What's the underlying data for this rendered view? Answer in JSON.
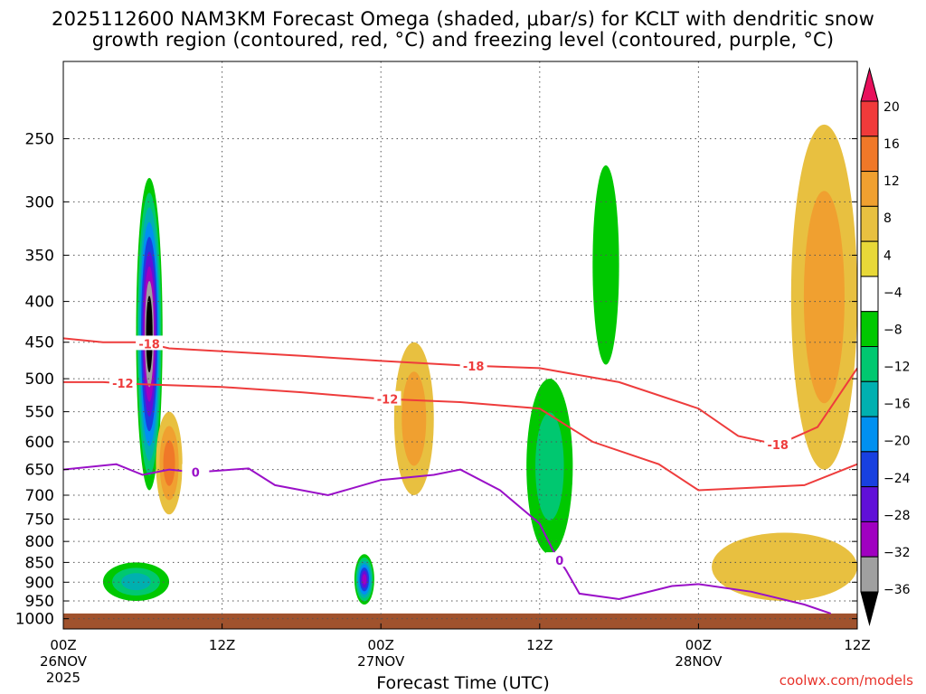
{
  "title_line1": "2025112600 NAM3KM Forecast Omega (shaded, μbar/s) for KCLT with dendritic snow",
  "title_line2": "growth region (contoured, red, °C) and freezing level (contoured, purple, °C)",
  "credit": "coolwx.com/models",
  "chart_data": {
    "type": "heatmap",
    "xlabel": "Forecast Time (UTC)",
    "ylabel": "",
    "x_range_hours": [
      0,
      60
    ],
    "y_axis": {
      "type": "log-pressure",
      "range_hpa": [
        1030,
        200
      ],
      "inverted": true
    },
    "x_ticks": [
      {
        "hour": 0,
        "lines": [
          "00Z",
          "26NOV",
          "2025"
        ]
      },
      {
        "hour": 12,
        "lines": [
          "12Z"
        ]
      },
      {
        "hour": 24,
        "lines": [
          "00Z",
          "27NOV"
        ]
      },
      {
        "hour": 36,
        "lines": [
          "12Z"
        ]
      },
      {
        "hour": 48,
        "lines": [
          "00Z",
          "28NOV"
        ]
      },
      {
        "hour": 60,
        "lines": [
          "12Z"
        ]
      }
    ],
    "y_ticks": [
      250,
      300,
      350,
      400,
      450,
      500,
      550,
      600,
      650,
      700,
      750,
      800,
      850,
      900,
      950,
      1000
    ],
    "grid": true,
    "colorbar": {
      "position": "right",
      "labels": [
        "20",
        "16",
        "12",
        "8",
        "4",
        "−4",
        "−8",
        "−12",
        "−16",
        "−20",
        "−24",
        "−28",
        "−32",
        "−36"
      ],
      "colors": [
        "#e8105c",
        "#f03a3a",
        "#f07828",
        "#f0a030",
        "#e8c040",
        "#e8d838",
        "#ffffff",
        "#00c800",
        "#00c870",
        "#00b0b0",
        "#0090f0",
        "#1840e0",
        "#6010d8",
        "#a000c0",
        "#a0a0a0",
        "#000000"
      ]
    },
    "omega_regions": [
      {
        "name": "ascent core 26 Nov",
        "hours": [
          5.5,
          7.5
        ],
        "pressure_hpa": [
          280,
          690
        ],
        "peak": -40
      },
      {
        "name": "low-level ascent 26 Nov",
        "hours": [
          3.0,
          8.0
        ],
        "pressure_hpa": [
          850,
          950
        ],
        "peak": -12
      },
      {
        "name": "ascent 27 Nov 00Z",
        "hours": [
          22.0,
          23.5
        ],
        "pressure_hpa": [
          830,
          960
        ],
        "peak": -30
      },
      {
        "name": "ascent 27 Nov 12Z",
        "hours": [
          35.0,
          38.5
        ],
        "pressure_hpa": [
          500,
          830
        ],
        "peak": -8
      },
      {
        "name": "upper ascent 27 Nov",
        "hours": [
          40.0,
          42.0
        ],
        "pressure_hpa": [
          270,
          480
        ],
        "peak": -6
      },
      {
        "name": "descent 26 Nov",
        "hours": [
          7.0,
          9.0
        ],
        "pressure_hpa": [
          550,
          740
        ],
        "peak": 14
      },
      {
        "name": "descent 27 Nov",
        "hours": [
          25.0,
          28.0
        ],
        "pressure_hpa": [
          450,
          700
        ],
        "peak": 8
      },
      {
        "name": "descent 28 Nov",
        "hours": [
          55.0,
          60.0
        ],
        "pressure_hpa": [
          240,
          650
        ],
        "peak": 10
      },
      {
        "name": "low-level descent 28 Nov",
        "hours": [
          49.0,
          60.0
        ],
        "pressure_hpa": [
          780,
          950
        ],
        "peak": 6
      }
    ],
    "series": [
      {
        "name": "-18",
        "color": "#ee3c3c",
        "x": [
          0,
          3,
          6,
          8,
          12,
          18,
          24,
          30,
          36,
          42,
          48,
          51,
          54,
          57,
          60
        ],
        "y": [
          445,
          450,
          450,
          458,
          462,
          468,
          475,
          481,
          485,
          505,
          545,
          590,
          605,
          575,
          485
        ],
        "label_hours": [
          6.5,
          31,
          54
        ]
      },
      {
        "name": "-12",
        "color": "#ee3c3c",
        "x": [
          0,
          3,
          6,
          9,
          12,
          18,
          24,
          30,
          36,
          40,
          45,
          48,
          52,
          56,
          60
        ],
        "y": [
          505,
          505,
          508,
          510,
          512,
          520,
          530,
          535,
          545,
          600,
          640,
          690,
          685,
          680,
          640
        ],
        "label_hours": [
          4.5,
          24.5
        ]
      },
      {
        "name": "0",
        "color": "#9a10c8",
        "x": [
          0,
          4,
          6,
          8,
          10,
          14,
          16,
          20,
          24,
          28,
          30,
          33,
          36,
          37,
          38,
          39,
          42,
          46,
          48,
          52,
          56,
          58
        ],
        "y": [
          650,
          640,
          660,
          650,
          655,
          648,
          680,
          700,
          670,
          660,
          650,
          690,
          760,
          820,
          870,
          930,
          945,
          910,
          905,
          925,
          960,
          985
        ],
        "label_hours": [
          10,
          37.5
        ]
      }
    ],
    "surface_band": {
      "pressure_hpa": [
        985,
        1030
      ],
      "color": "#a0522d"
    }
  }
}
